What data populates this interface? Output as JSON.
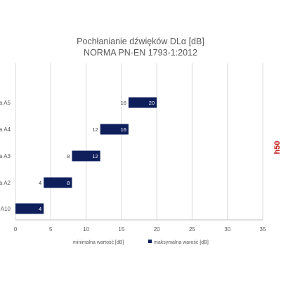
{
  "chart_data": {
    "type": "bar",
    "orientation": "horizontal",
    "stacked": true,
    "title": "Pochłanianie  dźwięków  DLα [dB]",
    "subtitle": "NORMA PN-EN 1793-1:2012",
    "categories": [
      "a A10",
      "a A2",
      "a A3",
      "a A4",
      "a A5"
    ],
    "series": [
      {
        "name": "minimalna wartość [dB]",
        "values": [
          0,
          4,
          8,
          12,
          16
        ],
        "color": "#ffffff",
        "labels": [
          "",
          "4",
          "8",
          "12",
          "16"
        ]
      },
      {
        "name": "maksymalna warość [dB]",
        "values": [
          4,
          4,
          4,
          4,
          4
        ],
        "color": "#0f1f5c",
        "labels": [
          "4",
          "8",
          "12",
          "16",
          "20"
        ]
      }
    ],
    "xlim": [
      0,
      35
    ],
    "xticks": [
      0,
      5,
      10,
      15,
      20,
      25,
      30,
      35
    ],
    "grid": true,
    "legend_position": "bottom"
  },
  "watermark": {
    "text": "h50",
    "color": "#c41e1e"
  }
}
